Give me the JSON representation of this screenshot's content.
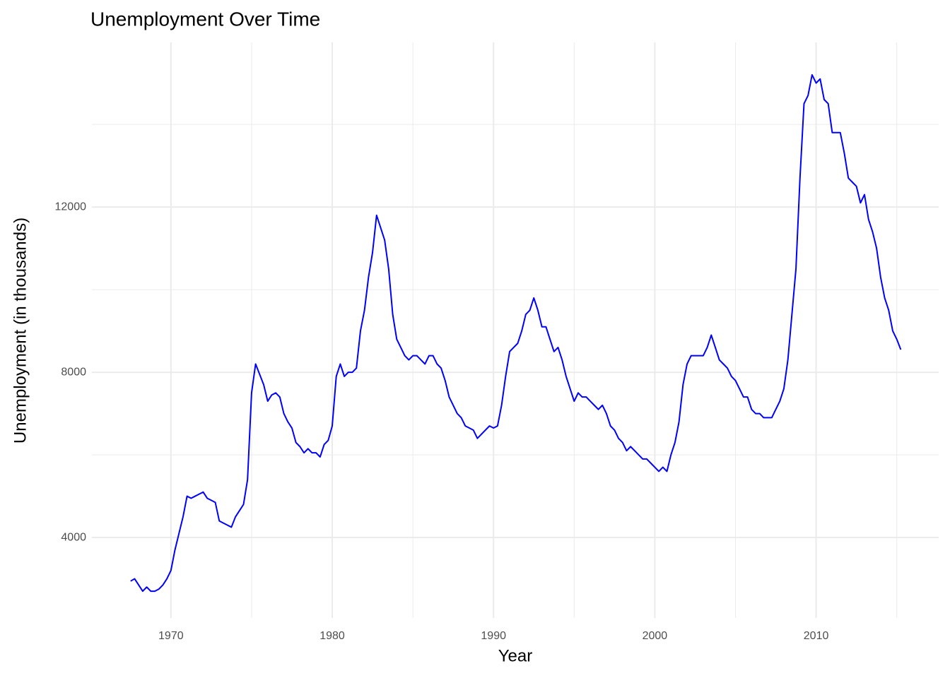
{
  "chart_data": {
    "type": "line",
    "title": "Unemployment Over Time",
    "xlabel": "Year",
    "ylabel": "Unemployment (in thousands)",
    "x": [
      1967.5,
      1967.75,
      1968,
      1968.25,
      1968.5,
      1968.75,
      1969,
      1969.25,
      1969.5,
      1969.75,
      1970,
      1970.25,
      1970.5,
      1970.75,
      1971,
      1971.25,
      1971.5,
      1971.75,
      1972,
      1972.25,
      1972.5,
      1972.75,
      1973,
      1973.25,
      1973.5,
      1973.75,
      1974,
      1974.25,
      1974.5,
      1974.75,
      1975,
      1975.25,
      1975.5,
      1975.75,
      1976,
      1976.25,
      1976.5,
      1976.75,
      1977,
      1977.25,
      1977.5,
      1977.75,
      1978,
      1978.25,
      1978.5,
      1978.75,
      1979,
      1979.25,
      1979.5,
      1979.75,
      1980,
      1980.25,
      1980.5,
      1980.75,
      1981,
      1981.25,
      1981.5,
      1981.75,
      1982,
      1982.25,
      1982.5,
      1982.75,
      1983,
      1983.25,
      1983.5,
      1983.75,
      1984,
      1984.25,
      1984.5,
      1984.75,
      1985,
      1985.25,
      1985.5,
      1985.75,
      1986,
      1986.25,
      1986.5,
      1986.75,
      1987,
      1987.25,
      1987.5,
      1987.75,
      1988,
      1988.25,
      1988.5,
      1988.75,
      1989,
      1989.25,
      1989.5,
      1989.75,
      1990,
      1990.25,
      1990.5,
      1990.75,
      1991,
      1991.25,
      1991.5,
      1991.75,
      1992,
      1992.25,
      1992.5,
      1992.75,
      1993,
      1993.25,
      1993.5,
      1993.75,
      1994,
      1994.25,
      1994.5,
      1994.75,
      1995,
      1995.25,
      1995.5,
      1995.75,
      1996,
      1996.25,
      1996.5,
      1996.75,
      1997,
      1997.25,
      1997.5,
      1997.75,
      1998,
      1998.25,
      1998.5,
      1998.75,
      1999,
      1999.25,
      1999.5,
      1999.75,
      2000,
      2000.25,
      2000.5,
      2000.75,
      2001,
      2001.25,
      2001.5,
      2001.75,
      2002,
      2002.25,
      2002.5,
      2002.75,
      2003,
      2003.25,
      2003.5,
      2003.75,
      2004,
      2004.25,
      2004.5,
      2004.75,
      2005,
      2005.25,
      2005.5,
      2005.75,
      2006,
      2006.25,
      2006.5,
      2006.75,
      2007,
      2007.25,
      2007.5,
      2007.75,
      2008,
      2008.25,
      2008.5,
      2008.75,
      2009,
      2009.25,
      2009.5,
      2009.75,
      2010,
      2010.25,
      2010.5,
      2010.75,
      2011,
      2011.25,
      2011.5,
      2011.75,
      2012,
      2012.25,
      2012.5,
      2012.75,
      2013,
      2013.25,
      2013.5,
      2013.75,
      2014,
      2014.25,
      2014.5,
      2014.75,
      2015,
      2015.25
    ],
    "series": [
      {
        "name": "Unemployment",
        "color": "#0000ff",
        "values": [
          2944,
          3000,
          2850,
          2700,
          2800,
          2700,
          2700,
          2750,
          2850,
          3000,
          3200,
          3700,
          4100,
          4500,
          5000,
          4950,
          5000,
          5050,
          5100,
          4950,
          4900,
          4850,
          4400,
          4350,
          4300,
          4250,
          4500,
          4650,
          4800,
          5400,
          7500,
          8200,
          7950,
          7700,
          7300,
          7450,
          7500,
          7400,
          7000,
          6800,
          6650,
          6300,
          6200,
          6050,
          6150,
          6050,
          6050,
          5950,
          6250,
          6350,
          6700,
          7900,
          8200,
          7900,
          8000,
          8000,
          8100,
          9000,
          9500,
          10300,
          10900,
          11800,
          11500,
          11200,
          10500,
          9400,
          8800,
          8600,
          8400,
          8300,
          8400,
          8400,
          8300,
          8200,
          8400,
          8400,
          8200,
          8100,
          7800,
          7400,
          7200,
          7000,
          6900,
          6700,
          6650,
          6600,
          6400,
          6500,
          6600,
          6700,
          6650,
          6700,
          7200,
          7900,
          8500,
          8600,
          8700,
          9000,
          9400,
          9500,
          9800,
          9500,
          9100,
          9100,
          8800,
          8500,
          8600,
          8300,
          7900,
          7600,
          7300,
          7500,
          7400,
          7400,
          7300,
          7200,
          7100,
          7200,
          7000,
          6700,
          6600,
          6400,
          6300,
          6100,
          6200,
          6100,
          6000,
          5900,
          5900,
          5800,
          5700,
          5600,
          5700,
          5600,
          6000,
          6300,
          6800,
          7700,
          8200,
          8400,
          8400,
          8400,
          8400,
          8600,
          8900,
          8600,
          8300,
          8200,
          8100,
          7900,
          7800,
          7600,
          7400,
          7400,
          7100,
          7000,
          7000,
          6900,
          6900,
          6900,
          7100,
          7300,
          7600,
          8300,
          9400,
          10500,
          12700,
          14500,
          14700,
          15200,
          15000,
          15100,
          14600,
          14500,
          13800,
          13800,
          13800,
          13300,
          12700,
          12600,
          12500,
          12100,
          12300,
          11700,
          11400,
          11000,
          10300,
          9800,
          9500,
          9000,
          8800,
          8549
        ]
      }
    ],
    "xlim": [
      1965.1,
      2017.6
    ],
    "xticks": [
      1970,
      1980,
      1990,
      2000,
      2010
    ],
    "xminor": [
      1975,
      1985,
      1995,
      2005,
      2015
    ],
    "ylim": [
      2052,
      15985
    ],
    "yticks": [
      4000,
      8000,
      12000
    ],
    "yminor": [
      6000,
      10000,
      14000
    ],
    "grid": true
  }
}
